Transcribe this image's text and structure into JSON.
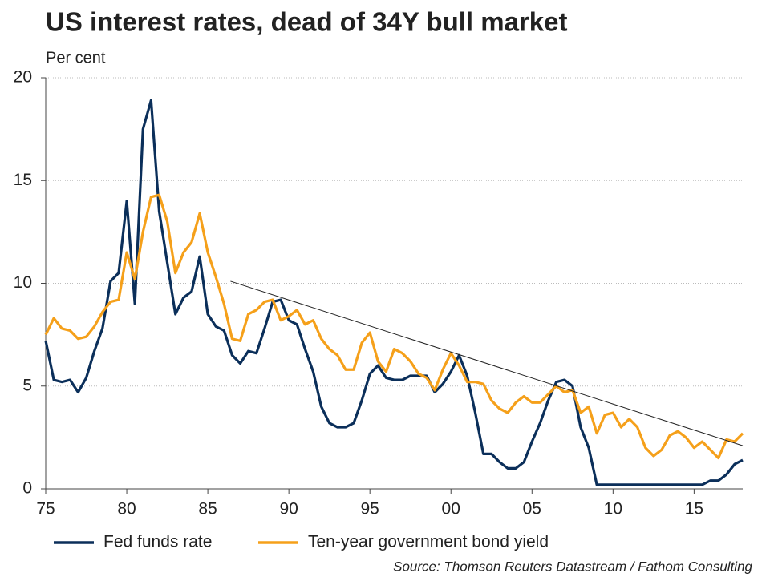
{
  "chart_data": {
    "type": "line",
    "title": "US interest rates, dead of 34Y bull market",
    "y_label": "Per cent",
    "source": "Source: Thomson Reuters Datastream / Fathom Consulting",
    "x": [
      1975,
      1975.5,
      1976,
      1976.5,
      1977,
      1977.5,
      1978,
      1978.5,
      1979,
      1979.5,
      1980,
      1980.5,
      1981,
      1981.5,
      1982,
      1982.5,
      1983,
      1983.5,
      1984,
      1984.5,
      1985,
      1985.5,
      1986,
      1986.5,
      1987,
      1987.5,
      1988,
      1988.5,
      1989,
      1989.5,
      1990,
      1990.5,
      1991,
      1991.5,
      1992,
      1992.5,
      1993,
      1993.5,
      1994,
      1994.5,
      1995,
      1995.5,
      1996,
      1996.5,
      1997,
      1997.5,
      1998,
      1998.5,
      1999,
      1999.5,
      2000,
      2000.5,
      2001,
      2001.5,
      2002,
      2002.5,
      2003,
      2003.5,
      2004,
      2004.5,
      2005,
      2005.5,
      2006,
      2006.5,
      2007,
      2007.5,
      2008,
      2008.5,
      2009,
      2009.5,
      2010,
      2010.5,
      2011,
      2011.5,
      2012,
      2012.5,
      2013,
      2013.5,
      2014,
      2014.5,
      2015,
      2015.5,
      2016,
      2016.5,
      2017,
      2017.5,
      2018
    ],
    "series": [
      {
        "name": "Fed funds rate",
        "color": "#0b2f5a",
        "values": [
          7.2,
          5.3,
          5.2,
          5.3,
          4.7,
          5.4,
          6.7,
          7.8,
          10.1,
          10.5,
          14,
          9.0,
          17.5,
          18.9,
          13.5,
          11,
          8.5,
          9.3,
          9.6,
          11.3,
          8.5,
          7.9,
          7.7,
          6.5,
          6.1,
          6.7,
          6.6,
          7.8,
          9.1,
          9.2,
          8.2,
          8.0,
          6.8,
          5.7,
          4.0,
          3.2,
          3.0,
          3.0,
          3.2,
          4.3,
          5.6,
          6.0,
          5.4,
          5.3,
          5.3,
          5.5,
          5.5,
          5.5,
          4.7,
          5.1,
          5.7,
          6.5,
          5.5,
          3.7,
          1.7,
          1.7,
          1.3,
          1.0,
          1.0,
          1.3,
          2.3,
          3.2,
          4.3,
          5.2,
          5.3,
          5.0,
          3.0,
          2.0,
          0.2,
          0.2,
          0.2,
          0.2,
          0.2,
          0.2,
          0.2,
          0.2,
          0.2,
          0.2,
          0.2,
          0.2,
          0.2,
          0.2,
          0.4,
          0.4,
          0.7,
          1.2,
          1.4
        ]
      },
      {
        "name": "Ten-year government bond yield",
        "color": "#f5a01a",
        "values": [
          7.5,
          8.3,
          7.8,
          7.7,
          7.3,
          7.4,
          7.9,
          8.6,
          9.1,
          9.2,
          11.5,
          10.2,
          12.5,
          14.2,
          14.3,
          13.0,
          10.5,
          11.5,
          12.0,
          13.4,
          11.5,
          10.3,
          9.0,
          7.3,
          7.2,
          8.5,
          8.7,
          9.1,
          9.2,
          8.2,
          8.4,
          8.7,
          8.0,
          8.2,
          7.3,
          6.8,
          6.5,
          5.8,
          5.8,
          7.1,
          7.6,
          6.2,
          5.7,
          6.8,
          6.6,
          6.2,
          5.6,
          5.4,
          4.8,
          5.8,
          6.6,
          6.0,
          5.2,
          5.2,
          5.1,
          4.3,
          3.9,
          3.7,
          4.2,
          4.5,
          4.2,
          4.2,
          4.6,
          5.0,
          4.7,
          4.8,
          3.7,
          4.0,
          2.7,
          3.6,
          3.7,
          3.0,
          3.4,
          3.0,
          2.0,
          1.6,
          1.9,
          2.6,
          2.8,
          2.5,
          2.0,
          2.3,
          1.9,
          1.5,
          2.4,
          2.3,
          2.7
        ]
      }
    ],
    "trend_line": {
      "x": [
        1986.4,
        2018
      ],
      "y": [
        10.1,
        2.1
      ]
    },
    "xlim": [
      1975,
      2018
    ],
    "xticks": [
      {
        "value": 1975,
        "label": "75"
      },
      {
        "value": 1980,
        "label": "80"
      },
      {
        "value": 1985,
        "label": "85"
      },
      {
        "value": 1990,
        "label": "90"
      },
      {
        "value": 1995,
        "label": "95"
      },
      {
        "value": 2000,
        "label": "00"
      },
      {
        "value": 2005,
        "label": "05"
      },
      {
        "value": 2010,
        "label": "10"
      },
      {
        "value": 2015,
        "label": "15"
      }
    ],
    "ylim": [
      0,
      20
    ],
    "yticks": [
      0,
      5,
      10,
      15,
      20
    ],
    "grid": true
  }
}
